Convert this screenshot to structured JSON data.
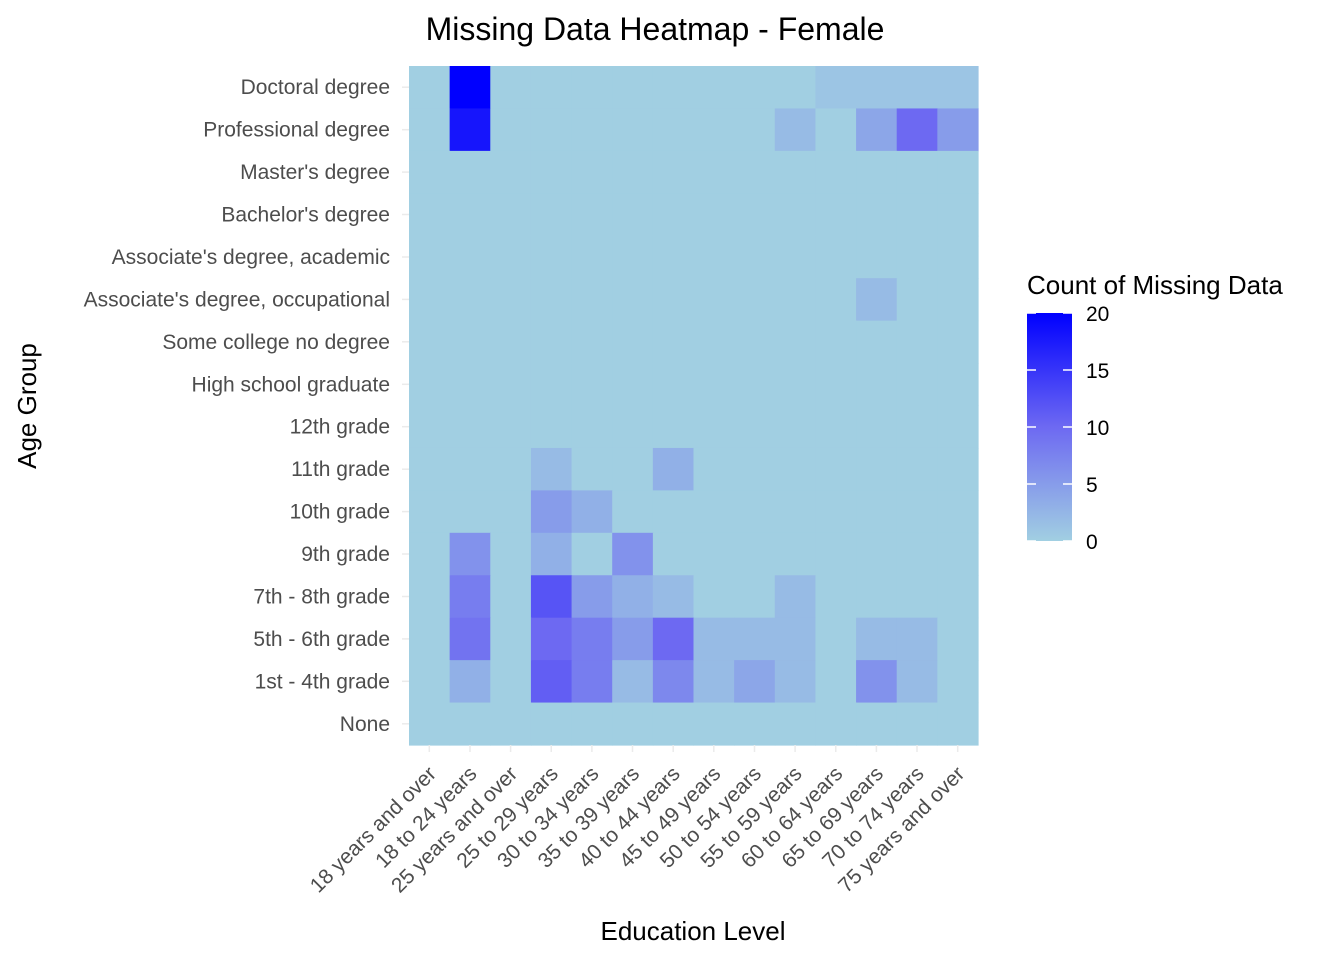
{
  "chart_data": {
    "type": "heatmap",
    "title": "Missing Data Heatmap - Female",
    "xlabel": "Education Level",
    "ylabel": "Age Group",
    "x_categories": [
      "18 years and over",
      "18 to 24 years",
      "25 years and over",
      "25 to 29 years",
      "30 to 34 years",
      "35 to 39 years",
      "40 to 44 years",
      "45 to 49 years",
      "50 to 54 years",
      "55 to 59 years",
      "60 to 64 years",
      "65 to 69 years",
      "70 to 74 years",
      "75 years and over"
    ],
    "y_categories": [
      "Doctoral degree",
      "Professional degree",
      "Master's degree",
      "Bachelor's degree",
      "Associate's degree, academic",
      "Associate's degree, occupational",
      "Some college no degree",
      "High school graduate",
      "12th grade",
      "11th grade",
      "10th grade",
      "9th grade",
      "7th - 8th grade",
      "5th - 6th grade",
      "1st - 4th grade",
      "None"
    ],
    "values": [
      [
        0,
        20,
        0,
        0,
        0,
        0,
        0,
        0,
        0,
        0,
        1,
        1,
        1,
        1
      ],
      [
        0,
        18,
        0,
        0,
        0,
        0,
        0,
        0,
        0,
        2,
        0,
        4,
        10,
        5
      ],
      [
        0,
        0,
        0,
        0,
        0,
        0,
        0,
        0,
        0,
        0,
        0,
        0,
        0,
        0
      ],
      [
        0,
        0,
        0,
        0,
        0,
        0,
        0,
        0,
        0,
        0,
        0,
        0,
        0,
        0
      ],
      [
        0,
        0,
        0,
        0,
        0,
        0,
        0,
        0,
        0,
        0,
        0,
        0,
        0,
        0
      ],
      [
        0,
        0,
        0,
        0,
        0,
        0,
        0,
        0,
        0,
        0,
        0,
        2,
        0,
        0
      ],
      [
        0,
        0,
        0,
        0,
        0,
        0,
        0,
        0,
        0,
        0,
        0,
        0,
        0,
        0
      ],
      [
        0,
        0,
        0,
        0,
        0,
        0,
        0,
        0,
        0,
        0,
        0,
        0,
        0,
        0
      ],
      [
        0,
        0,
        0,
        0,
        0,
        0,
        0,
        0,
        0,
        0,
        0,
        0,
        0,
        0
      ],
      [
        0,
        0,
        0,
        2,
        0,
        0,
        3,
        0,
        0,
        0,
        0,
        0,
        0,
        0
      ],
      [
        0,
        0,
        0,
        5,
        3,
        0,
        0,
        0,
        0,
        0,
        0,
        0,
        0,
        0
      ],
      [
        0,
        6,
        0,
        3,
        0,
        6,
        0,
        0,
        0,
        0,
        0,
        0,
        0,
        0
      ],
      [
        0,
        8,
        0,
        12,
        5,
        3,
        2,
        0,
        0,
        2,
        0,
        0,
        0,
        0
      ],
      [
        0,
        9,
        0,
        10,
        8,
        5,
        10,
        2,
        2,
        2,
        0,
        2,
        2,
        0
      ],
      [
        0,
        3,
        0,
        11,
        8,
        2,
        7,
        2,
        4,
        2,
        0,
        6,
        2,
        0
      ],
      [
        0,
        0,
        0,
        0,
        0,
        0,
        0,
        0,
        0,
        0,
        0,
        0,
        0,
        0
      ]
    ],
    "color_scale": {
      "low": "#a1cfe2",
      "mid": "#6d69f2",
      "high": "#0000ff",
      "min": 0,
      "max": 20
    },
    "legend": {
      "title": "Count of Missing Data",
      "ticks": [
        0,
        5,
        10,
        15,
        20
      ],
      "placement": "right"
    }
  }
}
